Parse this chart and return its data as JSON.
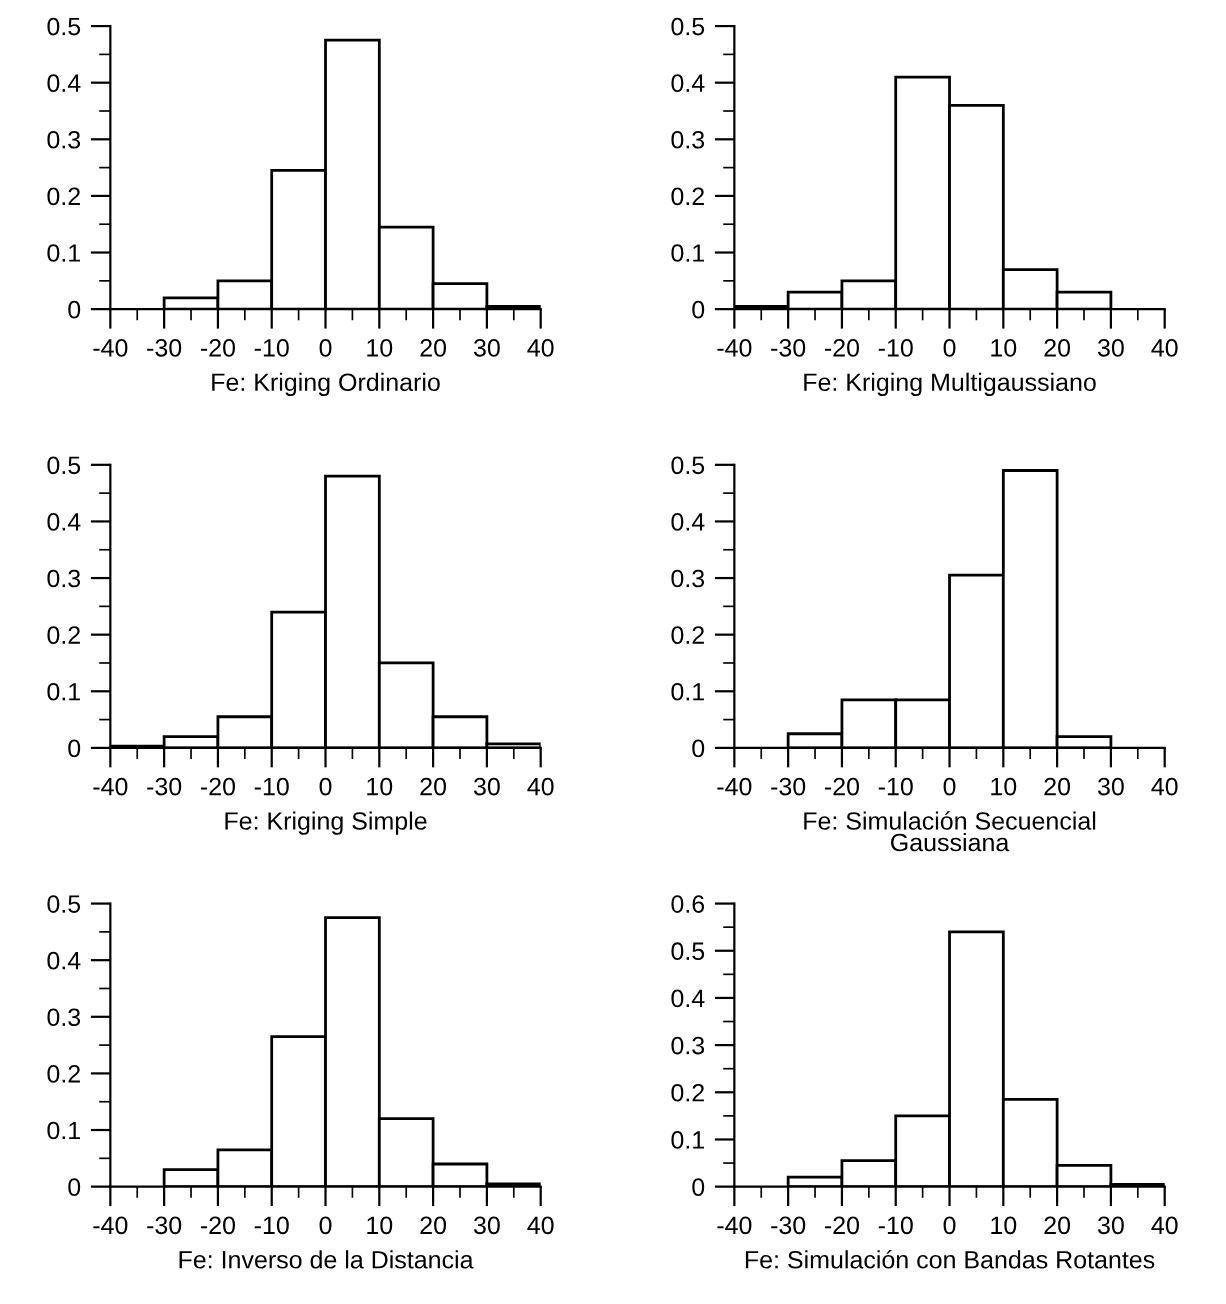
{
  "chart_data": [
    {
      "type": "histogram",
      "xlabel": "Fe: Kriging Ordinario",
      "bins": [
        -40,
        -30,
        -20,
        -10,
        0,
        10,
        20,
        30,
        40
      ],
      "values": [
        0,
        0.02,
        0.05,
        0.245,
        0.475,
        0.145,
        0.045,
        0.005
      ],
      "color": "#ffffff",
      "xlim": [
        -40,
        40
      ],
      "xticks": [
        -40,
        -30,
        -20,
        -10,
        0,
        10,
        20,
        30,
        40
      ],
      "ylim": [
        0,
        0.5
      ],
      "yticks": [
        0,
        0.1,
        0.2,
        0.3,
        0.4,
        0.5
      ],
      "grid": false
    },
    {
      "type": "histogram",
      "xlabel": "Fe: Kriging Multigaussiano",
      "bins": [
        -40,
        -30,
        -20,
        -10,
        0,
        10,
        20,
        30,
        40
      ],
      "values": [
        0.005,
        0.03,
        0.05,
        0.41,
        0.36,
        0.07,
        0.03,
        0
      ],
      "color": "#ffffff",
      "xlim": [
        -40,
        40
      ],
      "xticks": [
        -40,
        -30,
        -20,
        -10,
        0,
        10,
        20,
        30,
        40
      ],
      "ylim": [
        0,
        0.5
      ],
      "yticks": [
        0,
        0.1,
        0.2,
        0.3,
        0.4,
        0.5
      ],
      "grid": false
    },
    {
      "type": "histogram",
      "xlabel": "Fe: Kriging Simple",
      "bins": [
        -40,
        -30,
        -20,
        -10,
        0,
        10,
        20,
        30,
        40
      ],
      "values": [
        0.003,
        0.02,
        0.055,
        0.24,
        0.48,
        0.15,
        0.055,
        0.007
      ],
      "color": "#ffffff",
      "xlim": [
        -40,
        40
      ],
      "xticks": [
        -40,
        -30,
        -20,
        -10,
        0,
        10,
        20,
        30,
        40
      ],
      "ylim": [
        0,
        0.5
      ],
      "yticks": [
        0,
        0.1,
        0.2,
        0.3,
        0.4,
        0.5
      ],
      "grid": false
    },
    {
      "type": "histogram",
      "xlabel": "Fe: Simulación Secuencial\nGaussiana",
      "bins": [
        -40,
        -30,
        -20,
        -10,
        0,
        10,
        20,
        30,
        40
      ],
      "values": [
        0,
        0.025,
        0.085,
        0.085,
        0.305,
        0.49,
        0.02,
        0
      ],
      "color": "#ffffff",
      "xlim": [
        -40,
        40
      ],
      "xticks": [
        -40,
        -30,
        -20,
        -10,
        0,
        10,
        20,
        30,
        40
      ],
      "ylim": [
        0,
        0.5
      ],
      "yticks": [
        0,
        0.1,
        0.2,
        0.3,
        0.4,
        0.5
      ],
      "grid": false
    },
    {
      "type": "histogram",
      "xlabel": "Fe: Inverso de la Distancia",
      "bins": [
        -40,
        -30,
        -20,
        -10,
        0,
        10,
        20,
        30,
        40
      ],
      "values": [
        0,
        0.03,
        0.065,
        0.265,
        0.475,
        0.12,
        0.04,
        0.005
      ],
      "color": "#ffffff",
      "xlim": [
        -40,
        40
      ],
      "xticks": [
        -40,
        -30,
        -20,
        -10,
        0,
        10,
        20,
        30,
        40
      ],
      "ylim": [
        0,
        0.5
      ],
      "yticks": [
        0,
        0.1,
        0.2,
        0.3,
        0.4,
        0.5
      ],
      "grid": false
    },
    {
      "type": "histogram",
      "xlabel": "Fe: Simulación con Bandas Rotantes",
      "bins": [
        -40,
        -30,
        -20,
        -10,
        0,
        10,
        20,
        30,
        40
      ],
      "values": [
        0,
        0.02,
        0.055,
        0.15,
        0.54,
        0.185,
        0.045,
        0.005
      ],
      "color": "#ffffff",
      "xlim": [
        -40,
        40
      ],
      "xticks": [
        -40,
        -30,
        -20,
        -10,
        0,
        10,
        20,
        30,
        40
      ],
      "ylim": [
        0,
        0.6
      ],
      "yticks": [
        0,
        0.1,
        0.2,
        0.3,
        0.4,
        0.5,
        0.6
      ],
      "grid": false
    }
  ]
}
